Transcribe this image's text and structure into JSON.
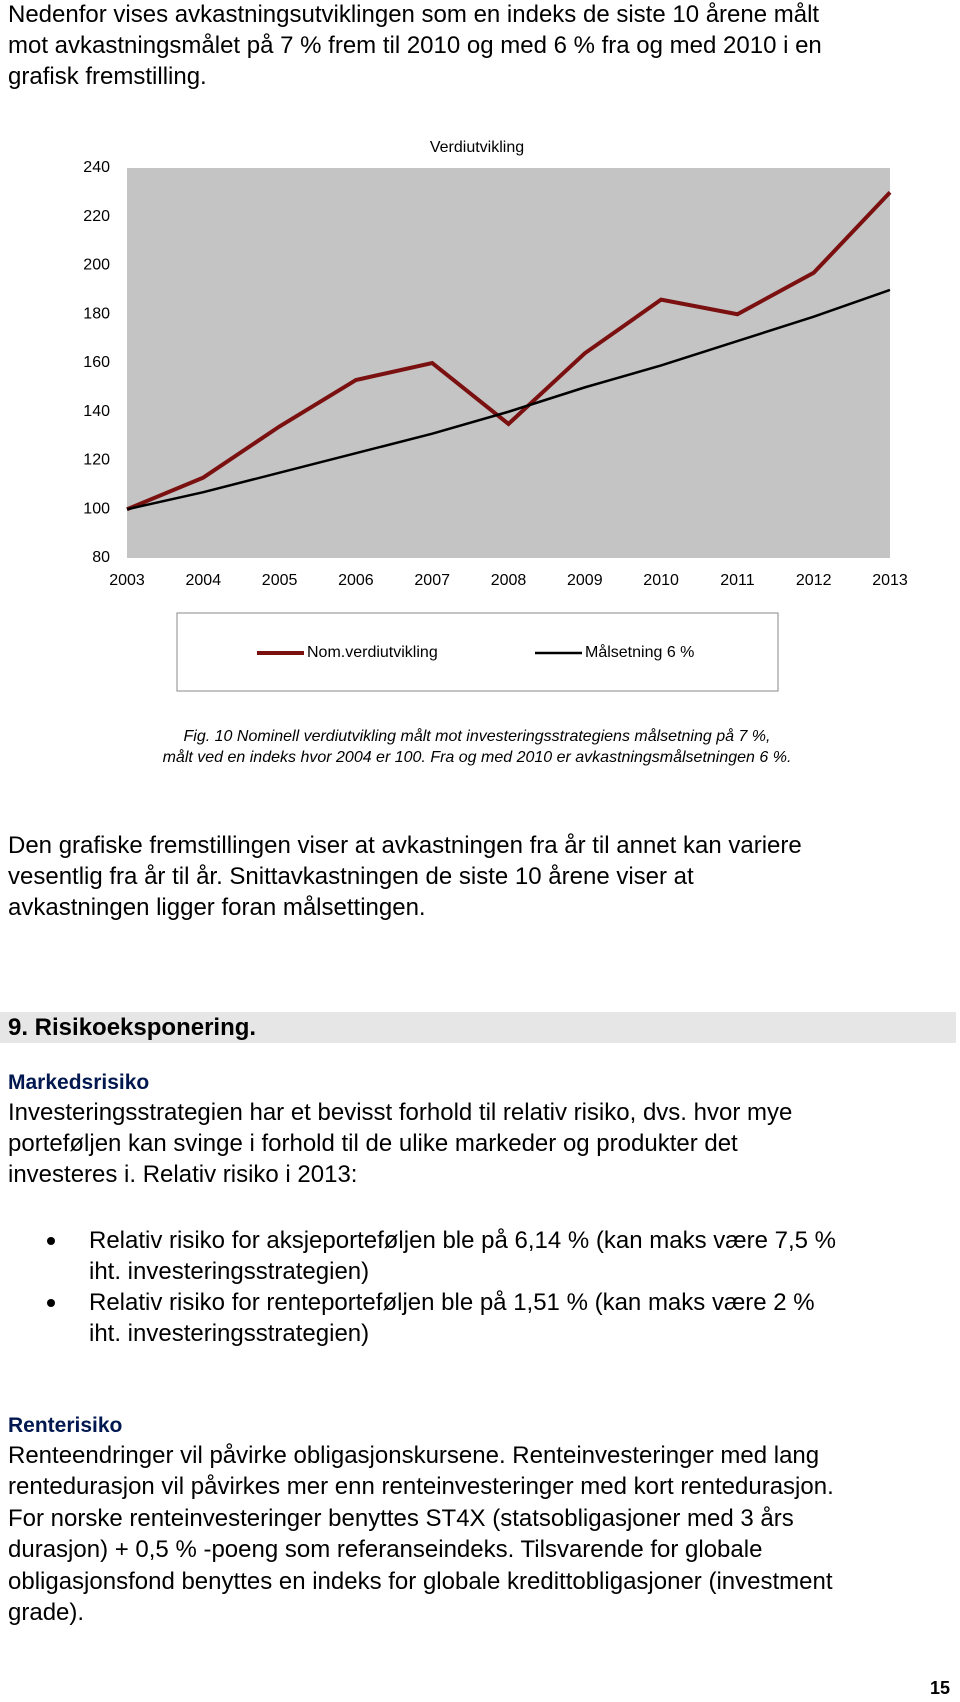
{
  "intro": [
    "Nedenfor vises avkastningsutviklingen som en indeks de siste 10 årene målt",
    "mot avkastningsmålet på 7 % frem til 2010 og med 6 % fra og med 2010 i en",
    "grafisk fremstilling."
  ],
  "chart_data": {
    "type": "line",
    "title": "Verdiutvikling",
    "x": [
      2003,
      2004,
      2005,
      2006,
      2007,
      2008,
      2009,
      2010,
      2011,
      2012,
      2013
    ],
    "series": [
      {
        "name": "Nom.verdiutvikling",
        "color": "#7b1010",
        "values": [
          100,
          113,
          134,
          153,
          160,
          135,
          164,
          186,
          180,
          197,
          230
        ]
      },
      {
        "name": "Målsetning 6 %",
        "color": "#000000",
        "values": [
          100,
          107,
          115,
          123,
          131,
          140,
          150,
          159,
          169,
          179,
          190
        ]
      }
    ],
    "xlim": [
      2003,
      2013
    ],
    "xticks": [
      2003,
      2004,
      2005,
      2006,
      2007,
      2008,
      2009,
      2010,
      2011,
      2012,
      2013
    ],
    "ylim": [
      80,
      240
    ],
    "yticks": [
      80,
      100,
      120,
      140,
      160,
      180,
      200,
      220,
      240
    ],
    "grid": false,
    "legend": "bottom"
  },
  "caption": [
    "Fig. 10 Nominell verdiutvikling målt mot investeringsstrategiens målsetning på 7 %,",
    "målt ved en indeks hvor 2004 er 100. Fra og med 2010 er avkastningsmålsetningen 6 %."
  ],
  "paragraph": [
    "Den grafiske fremstillingen viser at avkastningen fra år til annet kan variere",
    "vesentlig fra år til år. Snittavkastningen de siste 10 årene viser at",
    "avkastningen ligger foran målsettingen."
  ],
  "section": {
    "heading": "9. Risikoeksponering.",
    "subsections": [
      {
        "title": "Markedsrisiko",
        "lines": [
          "Investeringsstrategien har et bevisst forhold til relativ risiko, dvs. hvor mye",
          "porteføljen kan svinge i forhold til de ulike markeder og produkter det",
          "investeres i. Relativ risiko i 2013:"
        ],
        "bullets": [
          [
            "Relativ risiko for aksjeporteføljen ble på 6,14 % (kan maks være 7,5 %",
            "iht. investeringsstrategien)"
          ],
          [
            "Relativ risiko for renteporteføljen ble på 1,51 % (kan maks være 2 %",
            "iht. investeringsstrategien)"
          ]
        ]
      },
      {
        "title": "Renterisiko",
        "lines": [
          "Renteendringer vil påvirke obligasjonskursene. Renteinvesteringer med lang",
          "rentedurasjon vil påvirkes mer enn renteinvesteringer med kort rentedurasjon.",
          "For norske renteinvesteringer benyttes ST4X (statsobligasjoner med 3 års",
          "durasjon) + 0,5 % -poeng som referanseindeks. Tilsvarende for globale",
          "obligasjonsfond benyttes en indeks for globale kredittobligasjoner (investment",
          "grade)."
        ]
      }
    ]
  },
  "page_number": 15
}
